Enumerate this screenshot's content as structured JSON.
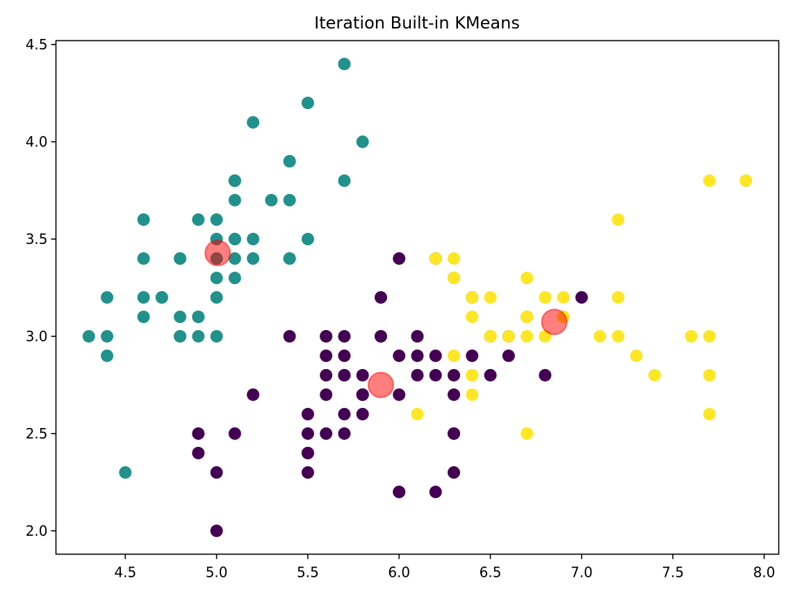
{
  "chart_data": {
    "type": "scatter",
    "title": "Iteration Built-in KMeans",
    "xlabel": "",
    "ylabel": "",
    "xlim": [
      4.12,
      8.08
    ],
    "ylim": [
      1.88,
      4.52
    ],
    "xticks": [
      4.5,
      5.0,
      5.5,
      6.0,
      6.5,
      7.0,
      7.5,
      8.0
    ],
    "xtick_labels": [
      "4.5",
      "5.0",
      "5.5",
      "6.0",
      "6.5",
      "7.0",
      "7.5",
      "8.0"
    ],
    "yticks": [
      2.0,
      2.5,
      3.0,
      3.5,
      4.0,
      4.5
    ],
    "ytick_labels": [
      "2.0",
      "2.5",
      "3.0",
      "3.5",
      "4.0",
      "4.5"
    ],
    "grid": false,
    "legend": "none",
    "series": [
      {
        "color": "#440154",
        "points": [
          [
            7.0,
            3.2
          ],
          [
            6.4,
            3.2
          ],
          [
            6.9,
            3.1
          ],
          [
            5.5,
            2.3
          ],
          [
            6.5,
            2.8
          ],
          [
            5.7,
            2.8
          ],
          [
            6.3,
            3.3
          ],
          [
            4.9,
            2.4
          ],
          [
            6.6,
            2.9
          ],
          [
            5.2,
            2.7
          ],
          [
            5.0,
            2.0
          ],
          [
            5.9,
            3.0
          ],
          [
            6.0,
            2.2
          ],
          [
            6.1,
            2.9
          ],
          [
            5.6,
            2.9
          ],
          [
            6.7,
            3.1
          ],
          [
            5.6,
            3.0
          ],
          [
            5.8,
            2.7
          ],
          [
            6.2,
            2.2
          ],
          [
            5.6,
            2.5
          ],
          [
            5.9,
            3.2
          ],
          [
            6.1,
            2.8
          ],
          [
            6.3,
            2.5
          ],
          [
            6.4,
            2.9
          ],
          [
            6.6,
            3.0
          ],
          [
            6.8,
            2.8
          ],
          [
            6.0,
            2.9
          ],
          [
            5.7,
            2.6
          ],
          [
            5.5,
            2.4
          ],
          [
            5.5,
            2.4
          ],
          [
            5.8,
            2.7
          ],
          [
            6.0,
            2.7
          ],
          [
            5.4,
            3.0
          ],
          [
            6.0,
            3.4
          ],
          [
            6.3,
            2.3
          ],
          [
            5.6,
            3.0
          ],
          [
            5.5,
            2.5
          ],
          [
            5.5,
            2.6
          ],
          [
            6.1,
            3.0
          ],
          [
            5.8,
            2.6
          ],
          [
            5.0,
            2.3
          ],
          [
            5.6,
            2.7
          ],
          [
            5.7,
            3.0
          ],
          [
            5.7,
            2.9
          ],
          [
            6.2,
            2.9
          ],
          [
            5.1,
            2.5
          ],
          [
            5.7,
            2.8
          ],
          [
            5.8,
            2.7
          ],
          [
            4.9,
            2.5
          ],
          [
            5.7,
            2.5
          ],
          [
            5.8,
            2.8
          ],
          [
            6.0,
            2.2
          ],
          [
            5.6,
            2.8
          ],
          [
            6.3,
            2.7
          ],
          [
            6.2,
            2.8
          ],
          [
            6.1,
            3.0
          ],
          [
            6.3,
            2.8
          ],
          [
            5.9,
            3.0
          ],
          [
            6.3,
            2.5
          ],
          [
            6.5,
            3.0
          ],
          [
            6.2,
            3.4
          ]
        ]
      },
      {
        "color": "#21918c",
        "points": [
          [
            5.1,
            3.5
          ],
          [
            4.9,
            3.0
          ],
          [
            4.7,
            3.2
          ],
          [
            4.6,
            3.1
          ],
          [
            5.0,
            3.6
          ],
          [
            5.4,
            3.9
          ],
          [
            4.6,
            3.4
          ],
          [
            5.0,
            3.4
          ],
          [
            4.4,
            2.9
          ],
          [
            4.9,
            3.1
          ],
          [
            5.4,
            3.7
          ],
          [
            4.8,
            3.4
          ],
          [
            4.8,
            3.0
          ],
          [
            4.3,
            3.0
          ],
          [
            5.8,
            4.0
          ],
          [
            5.7,
            4.4
          ],
          [
            5.4,
            3.9
          ],
          [
            5.1,
            3.5
          ],
          [
            5.7,
            3.8
          ],
          [
            5.1,
            3.8
          ],
          [
            5.4,
            3.4
          ],
          [
            5.1,
            3.7
          ],
          [
            4.6,
            3.6
          ],
          [
            5.1,
            3.3
          ],
          [
            4.8,
            3.4
          ],
          [
            5.0,
            3.0
          ],
          [
            5.0,
            3.4
          ],
          [
            5.2,
            3.5
          ],
          [
            5.2,
            3.4
          ],
          [
            4.7,
            3.2
          ],
          [
            4.8,
            3.1
          ],
          [
            5.4,
            3.4
          ],
          [
            5.2,
            4.1
          ],
          [
            5.5,
            4.2
          ],
          [
            4.9,
            3.1
          ],
          [
            5.0,
            3.2
          ],
          [
            5.5,
            3.5
          ],
          [
            4.9,
            3.6
          ],
          [
            4.4,
            3.0
          ],
          [
            5.1,
            3.4
          ],
          [
            5.0,
            3.5
          ],
          [
            4.5,
            2.3
          ],
          [
            4.4,
            3.2
          ],
          [
            5.0,
            3.5
          ],
          [
            5.1,
            3.8
          ],
          [
            4.8,
            3.0
          ],
          [
            5.1,
            3.8
          ],
          [
            4.6,
            3.2
          ],
          [
            5.3,
            3.7
          ],
          [
            5.0,
            3.3
          ]
        ]
      },
      {
        "color": "#fde725",
        "points": [
          [
            6.3,
            3.3
          ],
          [
            7.1,
            3.0
          ],
          [
            6.3,
            2.9
          ],
          [
            6.5,
            3.0
          ],
          [
            7.6,
            3.0
          ],
          [
            7.3,
            2.9
          ],
          [
            6.7,
            2.5
          ],
          [
            7.2,
            3.6
          ],
          [
            6.5,
            3.2
          ],
          [
            6.4,
            2.7
          ],
          [
            6.8,
            3.0
          ],
          [
            6.4,
            3.2
          ],
          [
            6.5,
            3.0
          ],
          [
            7.7,
            3.8
          ],
          [
            7.7,
            2.6
          ],
          [
            6.9,
            3.2
          ],
          [
            7.7,
            2.8
          ],
          [
            6.7,
            3.3
          ],
          [
            7.2,
            3.2
          ],
          [
            6.4,
            2.8
          ],
          [
            7.2,
            3.0
          ],
          [
            7.4,
            2.8
          ],
          [
            7.9,
            3.8
          ],
          [
            6.4,
            2.8
          ],
          [
            6.1,
            2.6
          ],
          [
            7.7,
            3.0
          ],
          [
            6.3,
            3.4
          ],
          [
            6.4,
            3.1
          ],
          [
            6.9,
            3.1
          ],
          [
            6.7,
            3.1
          ],
          [
            6.9,
            3.1
          ],
          [
            6.8,
            3.2
          ],
          [
            6.7,
            3.3
          ],
          [
            6.7,
            3.0
          ],
          [
            6.2,
            3.4
          ],
          [
            6.7,
            3.1
          ],
          [
            6.3,
            3.3
          ],
          [
            6.6,
            3.0
          ],
          [
            6.8,
            3.0
          ]
        ]
      }
    ],
    "centroids": {
      "color": "#ff0000",
      "opacity": 0.5,
      "points": [
        [
          5.9,
          2.75
        ],
        [
          5.006,
          3.428
        ],
        [
          6.85,
          3.074
        ]
      ]
    }
  }
}
